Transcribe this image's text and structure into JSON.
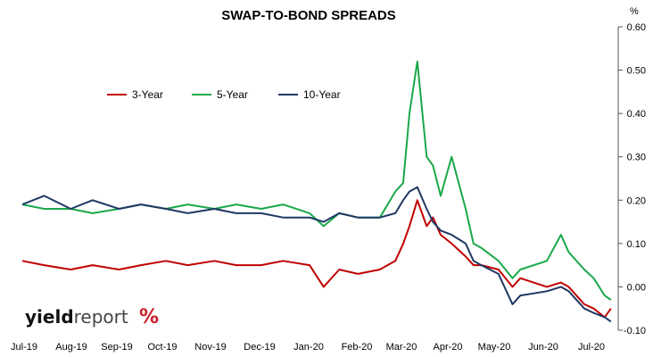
{
  "chart_data": {
    "type": "line",
    "title": "SWAP-TO-BOND SPREADS",
    "y_unit": "%",
    "ylim": [
      -0.1,
      0.6
    ],
    "y_ticks": [
      "0.60",
      "0.50",
      "0.40",
      "0.30",
      "0.20",
      "0.10",
      "0.00",
      "-0.10"
    ],
    "x_ticks": [
      "Jul-19",
      "Aug-19",
      "Sep-19",
      "Oct-19",
      "Nov-19",
      "Dec-19",
      "Jan-20",
      "Feb-20",
      "Mar-20",
      "Apr-20",
      "May-20",
      "Jun-20",
      "Jul-20"
    ],
    "grid": false,
    "legend_position": "upper-left",
    "x": [
      "2019-07-01",
      "2019-07-15",
      "2019-08-01",
      "2019-08-15",
      "2019-09-01",
      "2019-09-15",
      "2019-10-01",
      "2019-10-15",
      "2019-11-01",
      "2019-11-15",
      "2019-12-01",
      "2019-12-15",
      "2020-01-01",
      "2020-01-10",
      "2020-01-20",
      "2020-02-01",
      "2020-02-15",
      "2020-02-25",
      "2020-03-01",
      "2020-03-05",
      "2020-03-10",
      "2020-03-16",
      "2020-03-20",
      "2020-03-25",
      "2020-04-01",
      "2020-04-10",
      "2020-04-15",
      "2020-04-20",
      "2020-05-01",
      "2020-05-10",
      "2020-05-15",
      "2020-06-01",
      "2020-06-10",
      "2020-06-15",
      "2020-06-25",
      "2020-07-01",
      "2020-07-08",
      "2020-07-12"
    ],
    "series": [
      {
        "name": "3-Year",
        "color": "#c00000",
        "values": [
          0.06,
          0.05,
          0.04,
          0.05,
          0.04,
          0.05,
          0.06,
          0.05,
          0.06,
          0.05,
          0.05,
          0.06,
          0.05,
          0.0,
          0.04,
          0.03,
          0.04,
          0.06,
          0.1,
          0.14,
          0.2,
          0.14,
          0.16,
          0.12,
          0.1,
          0.07,
          0.05,
          0.05,
          0.04,
          0.0,
          0.02,
          0.0,
          0.01,
          0.0,
          -0.04,
          -0.05,
          -0.07,
          -0.05
        ]
      },
      {
        "name": "5-Year",
        "color": "#1aa84a",
        "values": [
          0.19,
          0.18,
          0.18,
          0.17,
          0.18,
          0.19,
          0.18,
          0.19,
          0.18,
          0.19,
          0.18,
          0.19,
          0.17,
          0.14,
          0.17,
          0.16,
          0.16,
          0.22,
          0.24,
          0.4,
          0.52,
          0.3,
          0.28,
          0.21,
          0.3,
          0.18,
          0.1,
          0.09,
          0.06,
          0.02,
          0.04,
          0.06,
          0.12,
          0.08,
          0.04,
          0.02,
          -0.02,
          -0.03
        ]
      },
      {
        "name": "10-Year",
        "color": "#1f3864",
        "values": [
          0.19,
          0.21,
          0.18,
          0.2,
          0.18,
          0.19,
          0.18,
          0.17,
          0.18,
          0.17,
          0.17,
          0.16,
          0.16,
          0.15,
          0.17,
          0.16,
          0.16,
          0.17,
          0.2,
          0.22,
          0.23,
          0.18,
          0.15,
          0.13,
          0.12,
          0.1,
          0.06,
          0.05,
          0.03,
          -0.04,
          -0.02,
          -0.01,
          0.0,
          -0.01,
          -0.05,
          -0.06,
          -0.07,
          -0.08
        ]
      }
    ]
  },
  "brand": {
    "part1": "yield",
    "part2": "report",
    "pct": "%"
  }
}
